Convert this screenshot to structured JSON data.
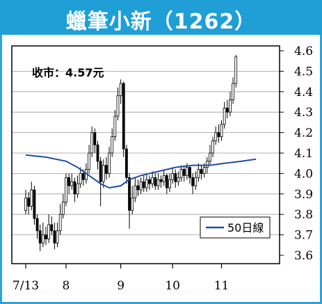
{
  "title": "蠟筆小新（1262）",
  "chart_data": {
    "type": "candlestick",
    "title": "蠟筆小新（1262）",
    "annotation": "收市：4.57元",
    "legend": [
      {
        "name": "50日線",
        "color": "#1f4fa0"
      }
    ],
    "legend_position": "bottom-right",
    "ylim": [
      3.6,
      4.6
    ],
    "y_ticks": [
      "3.6",
      "3.7",
      "3.8",
      "3.9",
      "4.0",
      "4.1",
      "4.2",
      "4.3",
      "4.4",
      "4.5",
      "4.6"
    ],
    "x_ticks": [
      {
        "label": "7/13",
        "index": 0
      },
      {
        "label": "8",
        "index": 14
      },
      {
        "label": "9",
        "index": 33
      },
      {
        "label": "10",
        "index": 51
      },
      {
        "label": "11",
        "index": 68
      }
    ],
    "grid": "horizontal",
    "x_count": 91,
    "ma50": [
      [
        0,
        4.09
      ],
      [
        7,
        4.08
      ],
      [
        14,
        4.06
      ],
      [
        18,
        4.03
      ],
      [
        22,
        3.99
      ],
      [
        26,
        3.95
      ],
      [
        29,
        3.93
      ],
      [
        33,
        3.94
      ],
      [
        36,
        3.97
      ],
      [
        40,
        3.99
      ],
      [
        46,
        4.01
      ],
      [
        52,
        4.03
      ],
      [
        58,
        4.04
      ],
      [
        64,
        4.04
      ],
      [
        69,
        4.05
      ],
      [
        75,
        4.06
      ],
      [
        80,
        4.07
      ]
    ],
    "candles": [
      [
        3.82,
        3.88,
        3.92,
        3.8
      ],
      [
        3.88,
        3.84,
        3.91,
        3.8
      ],
      [
        3.84,
        3.92,
        3.96,
        3.82
      ],
      [
        3.92,
        3.78,
        3.94,
        3.75
      ],
      [
        3.78,
        3.72,
        3.8,
        3.68
      ],
      [
        3.72,
        3.66,
        3.75,
        3.62
      ],
      [
        3.66,
        3.7,
        3.76,
        3.64
      ],
      [
        3.7,
        3.68,
        3.74,
        3.65
      ],
      [
        3.68,
        3.75,
        3.8,
        3.66
      ],
      [
        3.75,
        3.72,
        3.79,
        3.7
      ],
      [
        3.72,
        3.66,
        3.76,
        3.63
      ],
      [
        3.66,
        3.72,
        3.76,
        3.64
      ],
      [
        3.72,
        3.8,
        3.85,
        3.7
      ],
      [
        3.8,
        3.86,
        3.9,
        3.78
      ],
      [
        3.86,
        3.98,
        4.0,
        3.84
      ],
      [
        3.98,
        3.94,
        4.0,
        3.9
      ],
      [
        3.94,
        3.96,
        4.0,
        3.92
      ],
      [
        3.96,
        3.9,
        3.98,
        3.86
      ],
      [
        3.9,
        3.95,
        3.99,
        3.88
      ],
      [
        3.95,
        4.0,
        4.03,
        3.93
      ],
      [
        4.0,
        3.97,
        4.02,
        3.94
      ],
      [
        3.97,
        4.02,
        4.05,
        3.95
      ],
      [
        4.02,
        4.1,
        4.14,
        4.0
      ],
      [
        4.1,
        4.2,
        4.23,
        4.08
      ],
      [
        4.2,
        4.14,
        4.22,
        4.1
      ],
      [
        4.14,
        4.06,
        4.16,
        4.02
      ],
      [
        4.06,
        3.96,
        4.08,
        3.84
      ],
      [
        3.96,
        4.04,
        4.07,
        3.93
      ],
      [
        4.04,
        4.0,
        4.08,
        3.97
      ],
      [
        4.0,
        4.1,
        4.13,
        3.98
      ],
      [
        4.1,
        4.18,
        4.22,
        4.08
      ],
      [
        4.18,
        4.28,
        4.31,
        4.16
      ],
      [
        4.28,
        4.38,
        4.42,
        4.26
      ],
      [
        4.38,
        4.44,
        4.46,
        4.34
      ],
      [
        4.44,
        4.12,
        4.45,
        4.08
      ],
      [
        4.12,
        3.98,
        4.14,
        3.95
      ],
      [
        3.98,
        3.82,
        4.0,
        3.73
      ],
      [
        3.82,
        3.88,
        3.94,
        3.8
      ],
      [
        3.88,
        3.94,
        3.98,
        3.86
      ],
      [
        3.94,
        3.92,
        3.97,
        3.89
      ],
      [
        3.92,
        3.96,
        3.98,
        3.9
      ],
      [
        3.96,
        3.93,
        3.99,
        3.91
      ],
      [
        3.93,
        3.97,
        4.0,
        3.91
      ],
      [
        3.97,
        3.95,
        3.99,
        3.92
      ],
      [
        3.95,
        3.98,
        4.01,
        3.93
      ],
      [
        3.98,
        3.94,
        4.0,
        3.92
      ],
      [
        3.94,
        3.97,
        4.0,
        3.92
      ],
      [
        3.97,
        3.96,
        3.99,
        3.93
      ],
      [
        3.96,
        3.99,
        4.02,
        3.94
      ],
      [
        3.99,
        3.93,
        4.0,
        3.9
      ],
      [
        3.93,
        3.97,
        4.0,
        3.91
      ],
      [
        3.97,
        4.0,
        4.03,
        3.95
      ],
      [
        4.0,
        3.96,
        4.02,
        3.93
      ],
      [
        3.96,
        3.98,
        4.01,
        3.94
      ],
      [
        3.98,
        4.02,
        4.04,
        3.96
      ],
      [
        4.02,
        3.99,
        4.04,
        3.96
      ],
      [
        3.99,
        4.03,
        4.05,
        3.97
      ],
      [
        4.03,
        3.98,
        4.04,
        3.95
      ],
      [
        3.98,
        3.94,
        4.0,
        3.9
      ],
      [
        3.94,
        3.98,
        4.01,
        3.92
      ],
      [
        3.98,
        4.02,
        4.05,
        3.96
      ],
      [
        4.02,
        4.0,
        4.04,
        3.97
      ],
      [
        4.0,
        4.03,
        4.05,
        3.98
      ],
      [
        4.03,
        4.06,
        4.08,
        4.0
      ],
      [
        4.06,
        4.1,
        4.14,
        4.04
      ],
      [
        4.1,
        4.16,
        4.18,
        4.08
      ],
      [
        4.16,
        4.2,
        4.23,
        4.14
      ],
      [
        4.2,
        4.18,
        4.24,
        4.15
      ],
      [
        4.18,
        4.24,
        4.26,
        4.16
      ],
      [
        4.24,
        4.32,
        4.35,
        4.22
      ],
      [
        4.32,
        4.3,
        4.36,
        4.27
      ],
      [
        4.3,
        4.36,
        4.4,
        4.28
      ],
      [
        4.36,
        4.44,
        4.47,
        4.34
      ],
      [
        4.44,
        4.57,
        4.58,
        4.42
      ]
    ]
  }
}
